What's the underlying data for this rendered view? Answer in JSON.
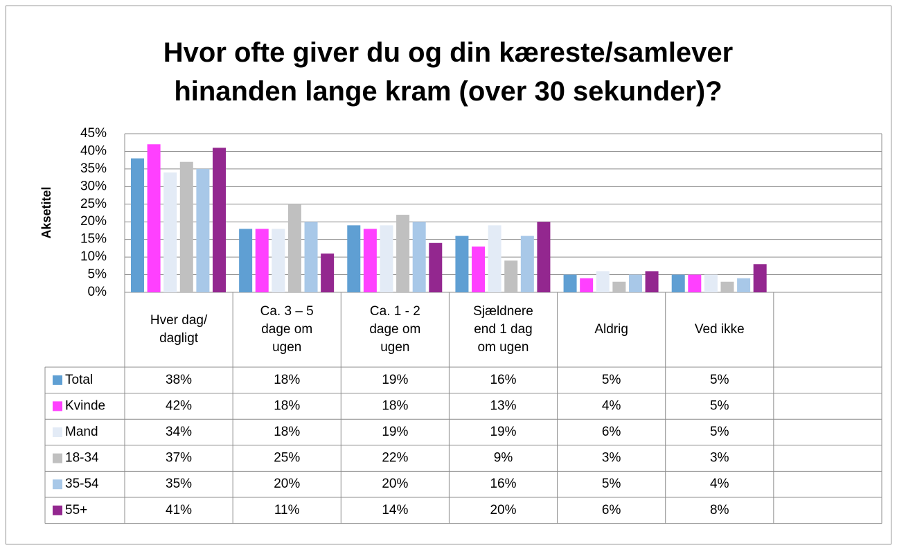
{
  "chart_data": {
    "type": "bar",
    "title": "Hvor ofte giver du og din kæreste/samlever hinanden lange kram (over 30 sekunder)?",
    "y_label": "Aksetitel",
    "categories": [
      "Hver dag/ dagligt",
      "Ca. 3 – 5 dage om ugen",
      "Ca. 1 - 2 dage om ugen",
      "Sjældnere end 1 dag om ugen",
      "Aldrig",
      "Ved ikke",
      null
    ],
    "series": [
      {
        "name": "Total",
        "color": "#5f9fd3",
        "values": [
          38,
          18,
          19,
          16,
          5,
          5,
          null
        ],
        "value_labels": [
          "38%",
          "18%",
          "19%",
          "16%",
          "5%",
          "5%",
          null
        ]
      },
      {
        "name": "Kvinde",
        "color": "#ff40ff",
        "values": [
          42,
          18,
          18,
          13,
          4,
          5,
          null
        ],
        "value_labels": [
          "42%",
          "18%",
          "18%",
          "13%",
          "4%",
          "5%",
          null
        ]
      },
      {
        "name": "Mand",
        "color": "#e3ebf6",
        "values": [
          34,
          18,
          19,
          19,
          6,
          5,
          null
        ],
        "value_labels": [
          "34%",
          "18%",
          "19%",
          "19%",
          "6%",
          "5%",
          null
        ]
      },
      {
        "name": "18-34",
        "color": "#c0c0c0",
        "values": [
          37,
          25,
          22,
          9,
          3,
          3,
          null
        ],
        "value_labels": [
          "37%",
          "25%",
          "22%",
          "9%",
          "3%",
          "3%",
          null
        ]
      },
      {
        "name": "35-54",
        "color": "#a8c8e8",
        "values": [
          35,
          20,
          20,
          16,
          5,
          4,
          null
        ],
        "value_labels": [
          "35%",
          "20%",
          "20%",
          "16%",
          "5%",
          "4%",
          null
        ]
      },
      {
        "name": "55+",
        "color": "#93278f",
        "values": [
          41,
          11,
          14,
          20,
          6,
          8,
          null
        ],
        "value_labels": [
          "41%",
          "11%",
          "14%",
          "20%",
          "6%",
          "8%",
          null
        ]
      }
    ],
    "ylim": [
      0,
      45
    ],
    "yticks": [
      {
        "value": 0,
        "label": "0%"
      },
      {
        "value": 5,
        "label": "5%"
      },
      {
        "value": 10,
        "label": "10%"
      },
      {
        "value": 15,
        "label": "15%"
      },
      {
        "value": 20,
        "label": "20%"
      },
      {
        "value": 25,
        "label": "25%"
      },
      {
        "value": 30,
        "label": "30%"
      },
      {
        "value": 35,
        "label": "35%"
      },
      {
        "value": 40,
        "label": "40%"
      },
      {
        "value": 45,
        "label": "45%"
      }
    ],
    "grid": true
  }
}
